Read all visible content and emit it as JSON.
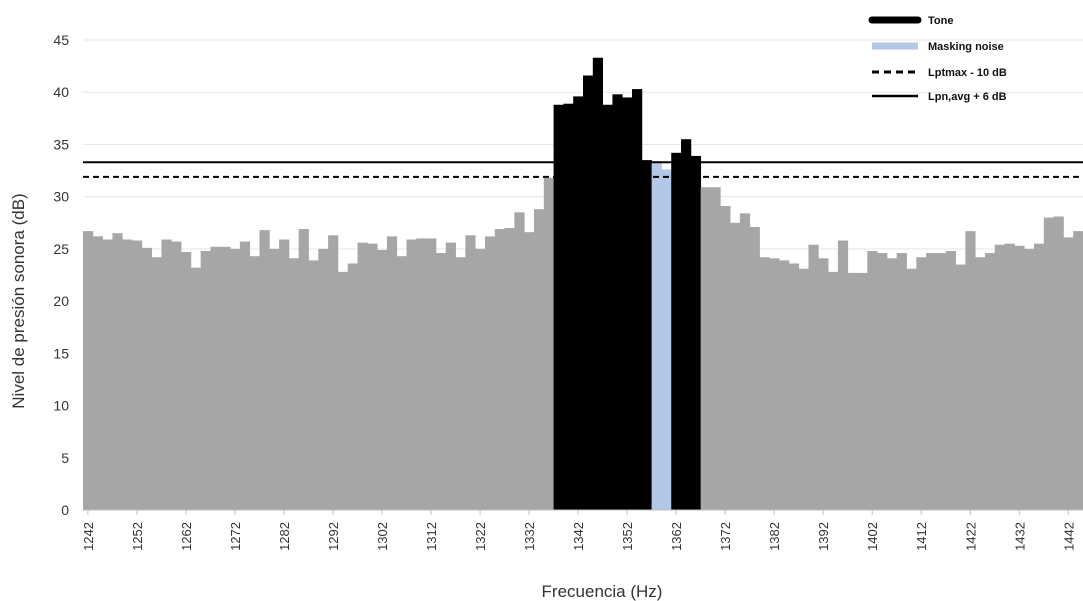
{
  "chart_data": {
    "type": "bar",
    "xlabel": "Frecuencia (Hz)",
    "ylabel": "Nivel de presión sonora (dB)",
    "ylim": [
      0,
      45
    ],
    "yticks": [
      0,
      5,
      10,
      15,
      20,
      25,
      30,
      35,
      40,
      45
    ],
    "x_start": 1242,
    "x_end": 1444,
    "bin_width_hz": 2,
    "xtick_labels": [
      1242,
      1252,
      1262,
      1272,
      1282,
      1292,
      1302,
      1312,
      1322,
      1332,
      1342,
      1352,
      1362,
      1372,
      1382,
      1392,
      1402,
      1412,
      1422,
      1432,
      1442
    ],
    "grid": "horizontal",
    "legend_position": "top-right",
    "colors": {
      "noise": "#a6a6a6",
      "tone": "#000000",
      "masking": "#b4c7e7",
      "line": "#000000"
    },
    "values": [
      26.7,
      26.2,
      25.9,
      26.5,
      25.9,
      25.8,
      25.1,
      24.2,
      25.9,
      25.7,
      24.7,
      23.2,
      24.8,
      25.2,
      25.2,
      25.0,
      25.7,
      24.3,
      26.8,
      25.0,
      25.9,
      24.1,
      26.9,
      23.9,
      25.0,
      26.3,
      22.8,
      23.6,
      25.6,
      25.5,
      24.9,
      26.2,
      24.3,
      25.9,
      26.0,
      26.0,
      24.6,
      25.6,
      24.2,
      26.3,
      25.0,
      26.2,
      26.9,
      27.0,
      28.5,
      26.6,
      28.8,
      31.8,
      38.8,
      38.9,
      39.6,
      41.6,
      43.3,
      38.8,
      39.8,
      39.5,
      40.3,
      33.5,
      33.4,
      32.6,
      34.2,
      35.5,
      33.9,
      30.9,
      30.9,
      29.1,
      27.5,
      28.4,
      27.1,
      24.2,
      24.1,
      23.9,
      23.6,
      23.1,
      25.4,
      24.1,
      22.8,
      25.8,
      22.7,
      22.7,
      24.8,
      24.6,
      24.1,
      24.6,
      23.1,
      24.2,
      24.6,
      24.6,
      24.8,
      23.5,
      26.7,
      24.2,
      24.6,
      25.4,
      25.5,
      25.3,
      25.0,
      25.5,
      28.0,
      28.1,
      26.1,
      26.7
    ],
    "tone_bins": [
      48,
      49,
      50,
      51,
      52,
      53,
      54,
      55,
      56,
      57,
      60,
      61,
      62
    ],
    "masking_bins": [
      58,
      59
    ],
    "tone_heights_note": "",
    "reference_lines": [
      {
        "name": "Lptmax - 10 dB",
        "value": 31.9,
        "style": "dashed"
      },
      {
        "name": "Lpn,avg + 6 dB",
        "value": 33.3,
        "style": "solid"
      }
    ],
    "legend": [
      {
        "label": "Tone",
        "kind": "tone"
      },
      {
        "label": "Masking noise",
        "kind": "masking"
      },
      {
        "label": "Lptmax - 10 dB",
        "kind": "dashed"
      },
      {
        "label": "Lpn,avg + 6 dB",
        "kind": "solid"
      }
    ]
  }
}
